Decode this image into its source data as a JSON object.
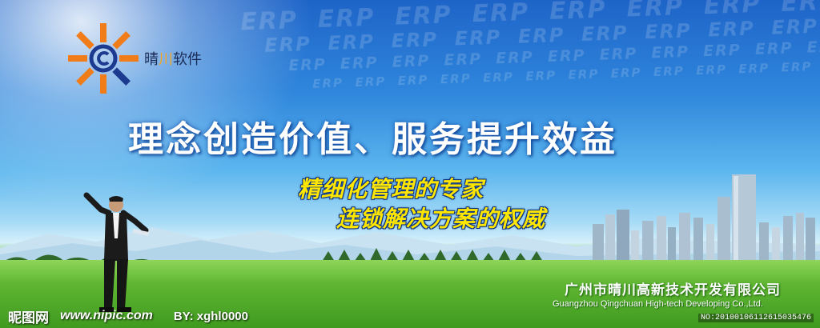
{
  "logo": {
    "icon": "sun-c-logo-icon",
    "colors": {
      "rays_orange": "#f07d1a",
      "rays_blue": "#1c3a8f",
      "ring": "#1c3a8f"
    },
    "company_short": "晴川软件",
    "company_short_parts": {
      "first": "晴",
      "accent": "川",
      "rest": "软件"
    },
    "accent_color": "#f5a623"
  },
  "background_text": {
    "repeated_word": "ERP"
  },
  "slogan": {
    "main": "理念创造价值、服务提升效益",
    "line1": "精细化管理的专家",
    "line2": "连锁解决方案的权威"
  },
  "company": {
    "name_cn": "广州市晴川高新技术开发有限公司",
    "name_en": "Guangzhou Qingchuan High-tech Developing Co.,Ltd."
  },
  "watermark": {
    "site": "昵图网",
    "url": "www.nipic.com",
    "by": "BY: xghl0000",
    "id": "NO:20100106112615035476"
  },
  "colors": {
    "sky_top": "#1e64c8",
    "grass": "#5fb632",
    "slogan_sub": "#ffe600"
  }
}
